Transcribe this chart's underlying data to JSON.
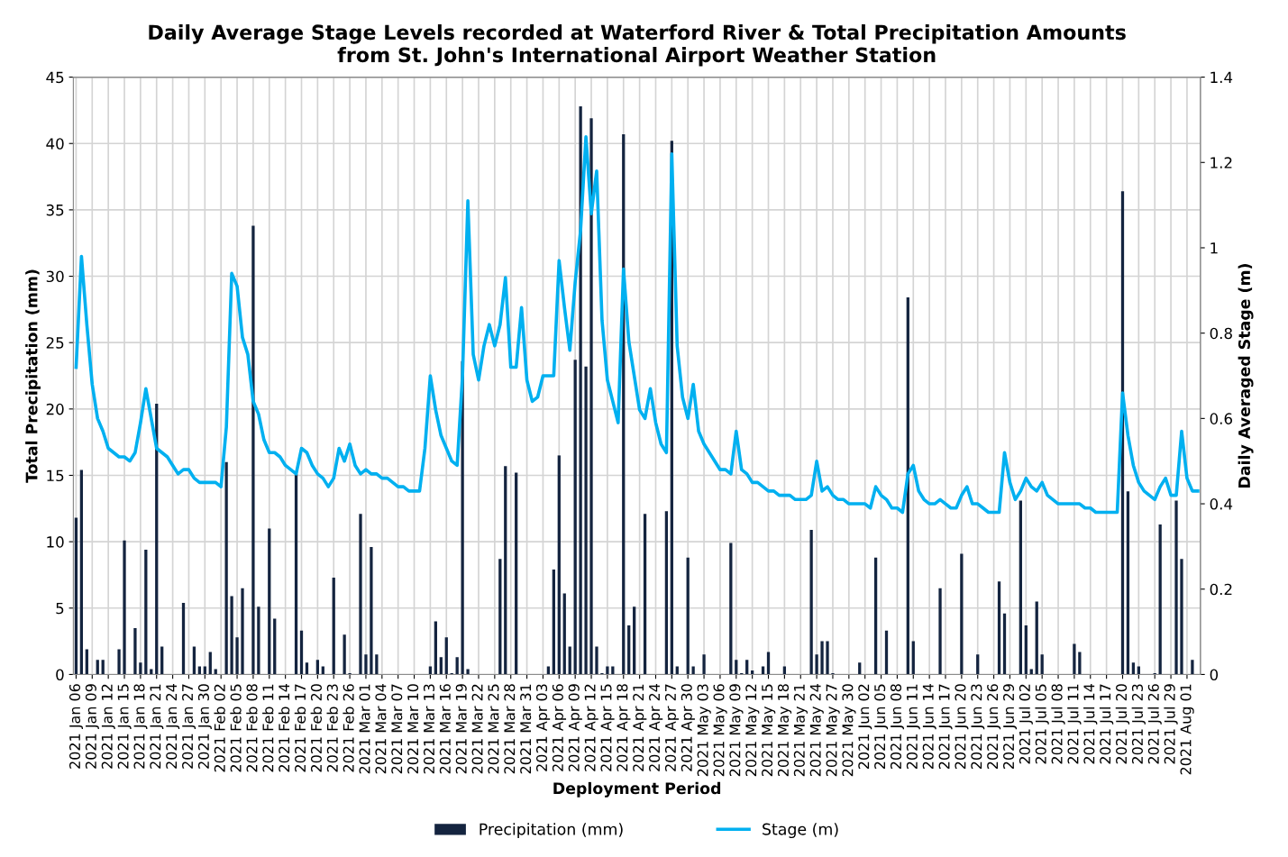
{
  "chart_data": {
    "type": "bar",
    "title": "Daily Average Stage Levels recorded at Waterford River & Total Precipitation Amounts\nfrom St. John's International Airport Weather Station",
    "xlabel": "Deployment Period",
    "ylabel": "Total Precipitation (mm)",
    "y2label": "Daily Averaged Stage (m)",
    "categories": [
      "2021 Jan 06",
      null,
      null,
      "2021 Jan 09",
      null,
      null,
      "2021 Jan 12",
      null,
      null,
      "2021 Jan 15",
      null,
      null,
      "2021 Jan 18",
      null,
      null,
      "2021 Jan 21",
      null,
      null,
      "2021 Jan 24",
      null,
      null,
      "2021 Jan 27",
      null,
      null,
      "2021 Jan 30",
      null,
      null,
      "2021 Feb 02",
      null,
      null,
      "2021 Feb 05",
      null,
      null,
      "2021 Feb 08",
      null,
      null,
      "2021 Feb 11",
      null,
      null,
      "2021 Feb 14",
      null,
      null,
      "2021 Feb 17",
      null,
      null,
      "2021 Feb 20",
      null,
      null,
      "2021 Feb 23",
      null,
      null,
      "2021 Feb 26",
      null,
      null,
      "2021 Mar 01",
      null,
      null,
      "2021 Mar 04",
      null,
      null,
      "2021 Mar 07",
      null,
      null,
      "2021 Mar 10",
      null,
      null,
      "2021 Mar 13",
      null,
      null,
      "2021 Mar 16",
      null,
      null,
      "2021 Mar 19",
      null,
      null,
      "2021 Mar 22",
      null,
      null,
      "2021 Mar 25",
      null,
      null,
      "2021 Mar 28",
      null,
      null,
      "2021 Mar 31",
      null,
      null,
      "2021 Apr 03",
      null,
      null,
      "2021 Apr 06",
      null,
      null,
      "2021 Apr 09",
      null,
      null,
      "2021 Apr 12",
      null,
      null,
      "2021 Apr 15",
      null,
      null,
      "2021 Apr 18",
      null,
      null,
      "2021 Apr 21",
      null,
      null,
      "2021 Apr 24",
      null,
      null,
      "2021 Apr 27",
      null,
      null,
      "2021 Apr 30",
      null,
      null,
      "2021 May 03",
      null,
      null,
      "2021 May 06",
      null,
      null,
      "2021 May 09",
      null,
      null,
      "2021 May 12",
      null,
      null,
      "2021 May 15",
      null,
      null,
      "2021 May 18",
      null,
      null,
      "2021 May 21",
      null,
      null,
      "2021 May 24",
      null,
      null,
      "2021 May 27",
      null,
      null,
      "2021 May 30",
      null,
      null,
      "2021 Jun 02",
      null,
      null,
      "2021 Jun 05",
      null,
      null,
      "2021 Jun 08",
      null,
      null,
      "2021 Jun 11",
      null,
      null,
      "2021 Jun 14",
      null,
      null,
      "2021 Jun 17",
      null,
      null,
      "2021 Jun 20",
      null,
      null,
      "2021 Jun 23",
      null,
      null,
      "2021 Jun 26",
      null,
      null,
      "2021 Jun 29",
      null,
      null,
      "2021 Jul 02",
      null,
      null,
      "2021 Jul 05",
      null,
      null,
      "2021 Jul 08",
      null,
      null,
      "2021 Jul 11",
      null,
      null,
      "2021 Jul 14",
      null,
      null,
      "2021 Jul 17",
      null,
      null,
      "2021 Jul 20",
      null,
      null,
      "2021 Jul 23",
      null,
      null,
      "2021 Jul 26",
      null,
      null,
      "2021 Jul 29",
      null,
      null,
      "2021 Aug 01",
      null,
      null
    ],
    "series": [
      {
        "name": "Precipitation (mm)",
        "color": "#14243f",
        "values": [
          11.8,
          15.4,
          1.9,
          0,
          1.1,
          1.1,
          0,
          0,
          1.9,
          10.1,
          0,
          3.5,
          0.9,
          9.4,
          0.4,
          20.4,
          2.1,
          0,
          0,
          0,
          5.4,
          0,
          2.1,
          0.6,
          0.6,
          1.7,
          0.4,
          0,
          16.0,
          5.9,
          2.8,
          6.5,
          0,
          33.8,
          5.1,
          0,
          11.0,
          4.2,
          0,
          0,
          0,
          15.1,
          3.3,
          0.9,
          0,
          1.1,
          0.6,
          0,
          7.3,
          0,
          3.0,
          0.1,
          0,
          12.1,
          1.5,
          9.6,
          1.5,
          0,
          0,
          0,
          0,
          0,
          0,
          0,
          0,
          0,
          0.6,
          4.0,
          1.3,
          2.8,
          0.1,
          1.3,
          23.6,
          0.4,
          0,
          0,
          0,
          0,
          0,
          8.7,
          15.7,
          0,
          15.2,
          0,
          0,
          0,
          0,
          0,
          0.6,
          7.9,
          16.5,
          6.1,
          2.1,
          23.7,
          42.8,
          23.2,
          41.9,
          2.1,
          0.1,
          0.6,
          0.6,
          0,
          40.7,
          3.7,
          5.1,
          0,
          12.1,
          0,
          0,
          0,
          12.3,
          40.2,
          0.6,
          0,
          8.8,
          0.6,
          0,
          1.5,
          0,
          0,
          0,
          0,
          9.9,
          1.1,
          0.1,
          1.1,
          0.3,
          0,
          0.6,
          1.7,
          0,
          0,
          0.6,
          0,
          0,
          0,
          0,
          10.9,
          1.5,
          2.5,
          2.5,
          0.1,
          0,
          0,
          0,
          0,
          0.9,
          0,
          0,
          8.8,
          0,
          3.3,
          0,
          0,
          0,
          28.4,
          2.5,
          0,
          0,
          0,
          0,
          6.5,
          0,
          0,
          0,
          9.1,
          0,
          0,
          1.5,
          0,
          0,
          0,
          7.0,
          4.6,
          0,
          0,
          13.1,
          3.7,
          0.4,
          5.5,
          1.5,
          0,
          0,
          0,
          0,
          0,
          2.3,
          1.7,
          0,
          0,
          0,
          0,
          0,
          0,
          0,
          36.4,
          13.8,
          0.9,
          0.6,
          0,
          0,
          0.1,
          11.3,
          0,
          0,
          13.1,
          8.7,
          0,
          1.1,
          0
        ]
      },
      {
        "name": "Stage (m)",
        "type": "line",
        "axis": "y2",
        "color": "#00b0f0",
        "values": [
          0.72,
          0.98,
          0.82,
          0.68,
          0.6,
          0.57,
          0.53,
          0.52,
          0.51,
          0.51,
          0.5,
          0.52,
          0.59,
          0.67,
          0.6,
          0.53,
          0.52,
          0.51,
          0.49,
          0.47,
          0.48,
          0.48,
          0.46,
          0.45,
          0.45,
          0.45,
          0.45,
          0.44,
          0.58,
          0.94,
          0.91,
          0.79,
          0.75,
          0.64,
          0.61,
          0.55,
          0.52,
          0.52,
          0.51,
          0.49,
          0.48,
          0.47,
          0.53,
          0.52,
          0.49,
          0.47,
          0.46,
          0.44,
          0.46,
          0.53,
          0.5,
          0.54,
          0.49,
          0.47,
          0.48,
          0.47,
          0.47,
          0.46,
          0.46,
          0.45,
          0.44,
          0.44,
          0.43,
          0.43,
          0.43,
          0.53,
          0.7,
          0.62,
          0.56,
          0.53,
          0.5,
          0.49,
          0.7,
          1.11,
          0.75,
          0.69,
          0.77,
          0.82,
          0.77,
          0.82,
          0.93,
          0.72,
          0.72,
          0.86,
          0.69,
          0.64,
          0.65,
          0.7,
          0.7,
          0.7,
          0.97,
          0.86,
          0.76,
          0.92,
          1.04,
          1.26,
          1.08,
          1.18,
          0.83,
          0.69,
          0.64,
          0.59,
          0.95,
          0.78,
          0.7,
          0.62,
          0.6,
          0.67,
          0.59,
          0.54,
          0.52,
          1.22,
          0.77,
          0.65,
          0.6,
          0.68,
          0.57,
          0.54,
          0.52,
          0.5,
          0.48,
          0.48,
          0.47,
          0.57,
          0.48,
          0.47,
          0.45,
          0.45,
          0.44,
          0.43,
          0.43,
          0.42,
          0.42,
          0.42,
          0.41,
          0.41,
          0.41,
          0.42,
          0.5,
          0.43,
          0.44,
          0.42,
          0.41,
          0.41,
          0.4,
          0.4,
          0.4,
          0.4,
          0.39,
          0.44,
          0.42,
          0.41,
          0.39,
          0.39,
          0.38,
          0.47,
          0.49,
          0.43,
          0.41,
          0.4,
          0.4,
          0.41,
          0.4,
          0.39,
          0.39,
          0.42,
          0.44,
          0.4,
          0.4,
          0.39,
          0.38,
          0.38,
          0.38,
          0.52,
          0.45,
          0.41,
          0.43,
          0.46,
          0.44,
          0.43,
          0.45,
          0.42,
          0.41,
          0.4,
          0.4,
          0.4,
          0.4,
          0.4,
          0.39,
          0.39,
          0.38,
          0.38,
          0.38,
          0.38,
          0.38,
          0.66,
          0.56,
          0.49,
          0.45,
          0.43,
          0.42,
          0.41,
          0.44,
          0.46,
          0.42,
          0.42,
          0.57,
          0.46,
          0.43,
          0.43
        ]
      }
    ],
    "ylim": [
      0,
      45
    ],
    "yticks": [
      0,
      5,
      10,
      15,
      20,
      25,
      30,
      35,
      40,
      45
    ],
    "y2lim": [
      0,
      1.4
    ],
    "y2ticks": [
      0,
      0.2,
      0.4,
      0.6,
      0.8,
      1,
      1.2,
      1.4
    ],
    "grid": true,
    "legend": "bottom",
    "line_style": "solid",
    "marker": "none"
  }
}
